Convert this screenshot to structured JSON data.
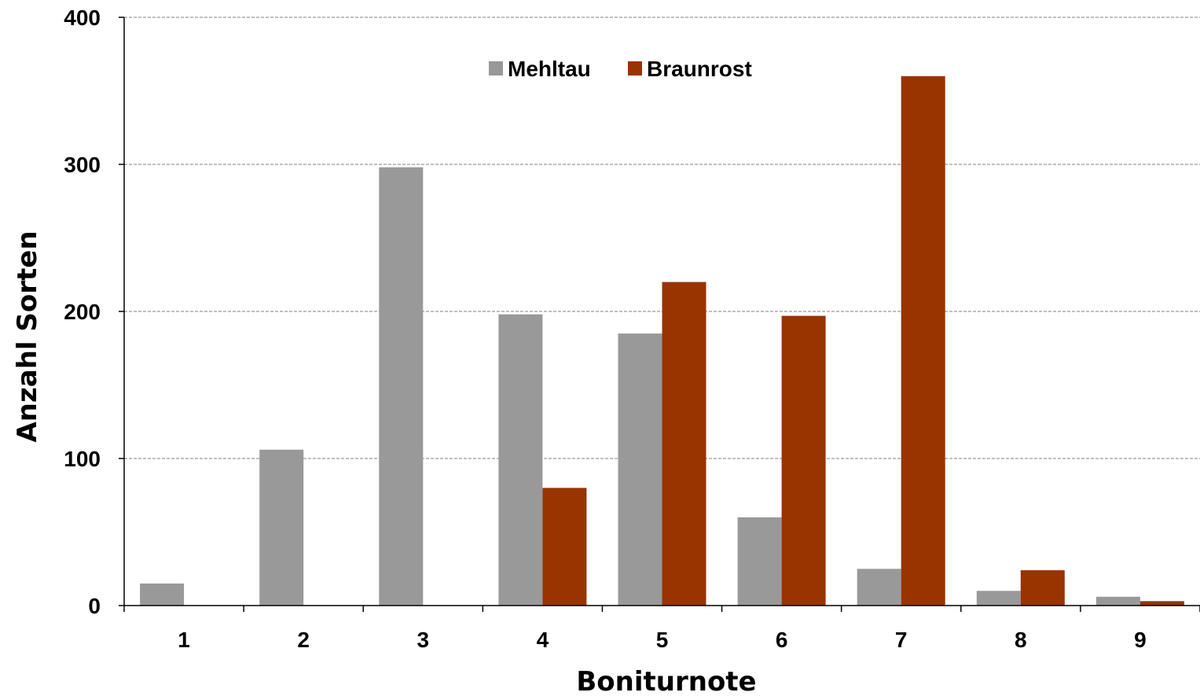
{
  "chart_data": {
    "type": "bar",
    "xlabel": "Boniturnote",
    "ylabel": "Anzahl Sorten",
    "categories": [
      "1",
      "2",
      "3",
      "4",
      "5",
      "6",
      "7",
      "8",
      "9"
    ],
    "series": [
      {
        "name": "Mehltau",
        "color": "#999999",
        "values": [
          15,
          106,
          298,
          198,
          185,
          60,
          25,
          10,
          6
        ]
      },
      {
        "name": "Braunrost",
        "color": "#993300",
        "values": [
          0,
          0,
          0,
          80,
          220,
          197,
          360,
          24,
          3
        ]
      }
    ],
    "ylim": [
      0,
      400
    ],
    "yticks": [
      0,
      100,
      200,
      300,
      400
    ],
    "grid": true,
    "legend_position": "top-center"
  }
}
